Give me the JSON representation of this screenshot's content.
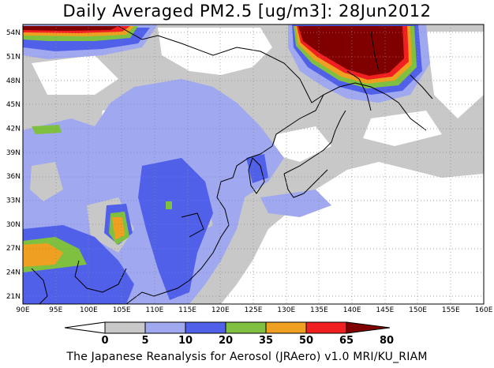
{
  "title": "Daily Averaged PM2.5 [ug/m3]: 28Jun2012",
  "footer": "The Japanese Reanalysis for Aerosol (JRAero) v1.0 MRI/KU_RIAM",
  "map": {
    "lon_range": [
      90,
      160
    ],
    "lat_range": [
      20,
      55
    ],
    "lon_ticks": [
      "90E",
      "95E",
      "100E",
      "105E",
      "110E",
      "115E",
      "120E",
      "125E",
      "130E",
      "135E",
      "140E",
      "145E",
      "150E",
      "155E",
      "160E"
    ],
    "lat_ticks": [
      "21N",
      "24N",
      "27N",
      "30N",
      "33N",
      "36N",
      "39N",
      "42N",
      "45N",
      "48N",
      "51N",
      "54N"
    ]
  },
  "colorbar": {
    "levels": [
      "0",
      "5",
      "10",
      "20",
      "35",
      "50",
      "65",
      "80"
    ],
    "colors": [
      "#ffffff",
      "#c8c8c8",
      "#a0a8f0",
      "#5060e8",
      "#80c040",
      "#f0a020",
      "#f02020",
      "#800000"
    ]
  }
}
